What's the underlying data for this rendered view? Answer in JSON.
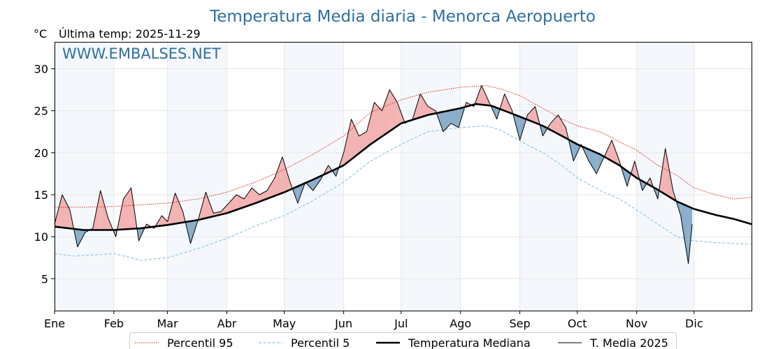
{
  "chart_data": {
    "type": "line",
    "title": "Temperatura Media diaria - Menorca Aeropuerto",
    "unit": "°C",
    "last_temp": "Última temp: 2025-11-29",
    "watermark": "WWW.EMBALSES.NET",
    "ylim": [
      1.2,
      33.2
    ],
    "yticks": [
      5,
      10,
      15,
      20,
      25,
      30
    ],
    "xlim": [
      0,
      364
    ],
    "months": [
      {
        "label": "Ene",
        "day": 0
      },
      {
        "label": "Feb",
        "day": 31
      },
      {
        "label": "Mar",
        "day": 59
      },
      {
        "label": "Abr",
        "day": 90
      },
      {
        "label": "May",
        "day": 120
      },
      {
        "label": "Jun",
        "day": 151
      },
      {
        "label": "Jul",
        "day": 181
      },
      {
        "label": "Ago",
        "day": 212
      },
      {
        "label": "Sep",
        "day": 243
      },
      {
        "label": "Oct",
        "day": 273
      },
      {
        "label": "Nov",
        "day": 304
      },
      {
        "label": "Dic",
        "day": 334
      }
    ],
    "shaded_months": [
      {
        "start": 0,
        "end": 31
      },
      {
        "start": 59,
        "end": 90
      },
      {
        "start": 120,
        "end": 151
      },
      {
        "start": 181,
        "end": 212
      },
      {
        "start": 243,
        "end": 273
      },
      {
        "start": 304,
        "end": 334
      }
    ],
    "grid": true,
    "legend_position": "bottom",
    "legend": [
      {
        "label": "Percentil 95",
        "style": "dotted",
        "color": "#e8281e"
      },
      {
        "label": "Percentil 5",
        "style": "dashed",
        "color": "#8ec8e0"
      },
      {
        "label": "Temperatura Mediana",
        "style": "thick",
        "color": "#000000"
      },
      {
        "label": "T. Media 2025",
        "style": "thin",
        "color": "#000000"
      }
    ],
    "colors": {
      "above": "#f3b3b3",
      "below": "#8aaecb",
      "p95": "#e8281e",
      "p5": "#8ec8e0"
    },
    "series": [
      {
        "name": "Percentil 95",
        "x": [
          0,
          15,
          31,
          45,
          59,
          75,
          90,
          105,
          120,
          135,
          151,
          165,
          181,
          195,
          212,
          225,
          233,
          243,
          255,
          265,
          273,
          285,
          295,
          304,
          315,
          325,
          334,
          345,
          355,
          364
        ],
        "y": [
          13.5,
          13.5,
          13.6,
          13.8,
          14.0,
          14.5,
          15.3,
          16.5,
          18.0,
          19.8,
          22.0,
          24.8,
          26.3,
          27.2,
          27.8,
          28.0,
          27.6,
          26.8,
          25.3,
          24.0,
          23.2,
          22.5,
          21.3,
          20.3,
          18.5,
          17.3,
          15.8,
          15.0,
          14.5,
          14.7
        ]
      },
      {
        "name": "Percentil 5",
        "x": [
          0,
          10,
          25,
          31,
          45,
          59,
          75,
          90,
          105,
          120,
          135,
          151,
          165,
          181,
          195,
          212,
          225,
          233,
          243,
          255,
          265,
          273,
          285,
          295,
          304,
          315,
          325,
          334,
          345,
          355,
          364
        ],
        "y": [
          8.0,
          7.7,
          7.9,
          8.0,
          7.2,
          7.5,
          8.6,
          9.8,
          11.3,
          12.5,
          14.3,
          16.5,
          19.0,
          21.0,
          22.5,
          23.0,
          23.2,
          22.7,
          21.4,
          20.0,
          18.5,
          17.0,
          15.5,
          14.5,
          13.2,
          11.5,
          10.0,
          9.5,
          9.3,
          9.2,
          9.1
        ]
      },
      {
        "name": "Temperatura Mediana",
        "x": [
          0,
          15,
          31,
          45,
          59,
          75,
          90,
          105,
          120,
          135,
          151,
          165,
          181,
          195,
          212,
          220,
          228,
          235,
          243,
          255,
          265,
          273,
          285,
          295,
          304,
          315,
          325,
          334,
          345,
          355,
          364
        ],
        "y": [
          11.2,
          10.8,
          10.8,
          11.0,
          11.4,
          12.0,
          12.8,
          14.0,
          15.3,
          16.8,
          18.5,
          21.0,
          23.5,
          24.5,
          25.3,
          25.8,
          25.6,
          25.0,
          24.3,
          23.2,
          22.0,
          21.0,
          19.8,
          18.5,
          17.0,
          15.6,
          14.2,
          13.3,
          12.6,
          12.1,
          11.5
        ]
      },
      {
        "name": "T. Media 2025",
        "x": [
          0,
          4,
          8,
          12,
          16,
          20,
          24,
          28,
          32,
          36,
          40,
          44,
          48,
          52,
          56,
          59,
          63,
          67,
          71,
          75,
          79,
          83,
          87,
          91,
          95,
          99,
          103,
          107,
          111,
          115,
          119,
          123,
          127,
          131,
          135,
          139,
          143,
          147,
          151,
          155,
          159,
          163,
          167,
          171,
          175,
          179,
          183,
          187,
          191,
          195,
          199,
          203,
          207,
          211,
          215,
          219,
          223,
          227,
          231,
          235,
          239,
          243,
          247,
          251,
          255,
          259,
          263,
          267,
          271,
          275,
          279,
          283,
          287,
          291,
          295,
          299,
          303,
          307,
          311,
          315,
          319,
          323,
          327,
          331,
          333
        ],
        "y": [
          11.5,
          15.0,
          13.2,
          8.8,
          10.5,
          11.0,
          15.5,
          12.2,
          10.0,
          14.5,
          15.8,
          9.5,
          11.5,
          11.0,
          12.5,
          11.8,
          15.2,
          13.0,
          9.2,
          12.0,
          15.3,
          12.8,
          13.0,
          14.0,
          15.0,
          14.5,
          15.8,
          15.0,
          15.5,
          17.0,
          19.5,
          16.5,
          14.0,
          16.5,
          15.5,
          16.8,
          18.5,
          17.2,
          20.0,
          24.0,
          22.0,
          22.5,
          26.0,
          25.0,
          27.5,
          26.0,
          23.5,
          24.0,
          27.0,
          25.5,
          25.0,
          22.5,
          23.5,
          23.0,
          26.0,
          25.5,
          28.0,
          26.0,
          24.0,
          27.0,
          25.0,
          21.5,
          24.5,
          25.5,
          22.0,
          23.5,
          24.5,
          23.0,
          19.0,
          21.0,
          19.0,
          17.5,
          19.5,
          21.5,
          19.0,
          16.0,
          19.0,
          15.5,
          17.0,
          14.5,
          20.5,
          15.5,
          12.5,
          6.8,
          11.5
        ]
      }
    ]
  }
}
